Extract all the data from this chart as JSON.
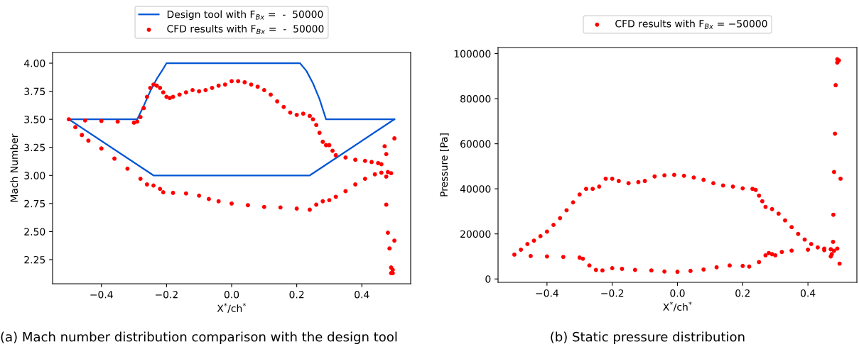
{
  "chart_data": [
    {
      "type": "scatter",
      "xlabel": "X$^{*}$/ch$^{*}$",
      "ylabel": "Mach Number",
      "legend": "top",
      "grid": false,
      "xlim": [
        -0.55,
        0.55
      ],
      "ylim": [
        2.035,
        4.095
      ],
      "xticks": [
        {
          "value": -0.4,
          "label": "−0.4"
        },
        {
          "value": -0.2,
          "label": "−0.2"
        },
        {
          "value": 0.0,
          "label": "0.0"
        },
        {
          "value": 0.2,
          "label": "0.2"
        },
        {
          "value": 0.4,
          "label": "0.4"
        }
      ],
      "yticks": [
        {
          "value": 2.25,
          "label": "2.25"
        },
        {
          "value": 2.5,
          "label": "2.50"
        },
        {
          "value": 2.75,
          "label": "2.75"
        },
        {
          "value": 3.0,
          "label": "3.00"
        },
        {
          "value": 3.25,
          "label": "3.25"
        },
        {
          "value": 3.5,
          "label": "3.50"
        },
        {
          "value": 3.75,
          "label": "3.75"
        },
        {
          "value": 4.0,
          "label": "4.00"
        }
      ],
      "annotations": [
        "(a) Mach number distribution comparison with the design tool"
      ],
      "series": [
        {
          "type": "line",
          "name": "Design tool with F$_{Bx}$ =  -  50000",
          "color": "#0055d4",
          "line_style": "solid",
          "marker": "none",
          "x": [
            -0.5,
            -0.29,
            -0.27,
            -0.25,
            -0.23,
            -0.21,
            -0.2,
            0.21,
            0.23,
            0.25,
            0.27,
            0.29,
            0.5
          ],
          "values": [
            3.5,
            3.5,
            3.62,
            3.75,
            3.86,
            3.95,
            4.0,
            4.0,
            3.93,
            3.82,
            3.68,
            3.5,
            3.5
          ]
        },
        {
          "type": "line",
          "color": "#0055d4",
          "line_style": "solid",
          "marker": "none",
          "x": [
            -0.5,
            -0.24,
            0.24,
            0.5
          ],
          "values": [
            3.5,
            3.0,
            3.0,
            3.5
          ]
        },
        {
          "name": "CFD results with F$_{Bx}$ =  -  50000",
          "color": "#ff0000",
          "marker": "circle",
          "x": [
            -0.5,
            -0.45,
            -0.4,
            -0.35,
            -0.3,
            -0.29,
            -0.28,
            -0.27,
            -0.26,
            -0.25,
            -0.24,
            -0.23,
            -0.22,
            -0.21,
            -0.2,
            -0.19,
            -0.18,
            -0.16,
            -0.14,
            -0.12,
            -0.1,
            -0.08,
            -0.06,
            -0.04,
            -0.02,
            0.0,
            0.02,
            0.04,
            0.06,
            0.08,
            0.1,
            0.12,
            0.14,
            0.16,
            0.18,
            0.2,
            0.22,
            0.24,
            0.25,
            0.26,
            0.27,
            0.28,
            0.29,
            0.3,
            0.31,
            0.32,
            0.35,
            0.38,
            0.41,
            0.43,
            0.45,
            0.46,
            -0.48,
            -0.46,
            -0.44,
            -0.4,
            -0.36,
            -0.32,
            -0.28,
            -0.26,
            -0.24,
            -0.22,
            -0.21,
            -0.18,
            -0.14,
            -0.1,
            -0.07,
            -0.04,
            0.0,
            0.05,
            0.1,
            0.15,
            0.2,
            0.24,
            0.26,
            0.28,
            0.3,
            0.32,
            0.35,
            0.38,
            0.41,
            0.44,
            0.46,
            0.48,
            0.49,
            0.47,
            0.475,
            0.5,
            0.475,
            0.475,
            0.48,
            0.5,
            0.485,
            0.49,
            0.495,
            0.49,
            0.495
          ],
          "values": [
            3.5,
            3.49,
            3.485,
            3.48,
            3.47,
            3.48,
            3.52,
            3.6,
            3.7,
            3.78,
            3.81,
            3.8,
            3.78,
            3.74,
            3.7,
            3.69,
            3.7,
            3.72,
            3.74,
            3.76,
            3.75,
            3.76,
            3.78,
            3.8,
            3.81,
            3.84,
            3.84,
            3.83,
            3.81,
            3.79,
            3.76,
            3.72,
            3.66,
            3.61,
            3.56,
            3.54,
            3.55,
            3.53,
            3.5,
            3.45,
            3.38,
            3.3,
            3.27,
            3.27,
            3.22,
            3.18,
            3.16,
            3.14,
            3.13,
            3.12,
            3.11,
            3.1,
            3.43,
            3.36,
            3.31,
            3.24,
            3.15,
            3.06,
            2.97,
            2.92,
            2.91,
            2.88,
            2.85,
            2.845,
            2.84,
            2.82,
            2.79,
            2.77,
            2.75,
            2.735,
            2.72,
            2.715,
            2.705,
            2.695,
            2.74,
            2.77,
            2.78,
            2.81,
            2.86,
            2.92,
            2.97,
            3.01,
            3.025,
            3.03,
            3.02,
            3.26,
            3.19,
            3.33,
            2.99,
            2.74,
            2.49,
            2.42,
            2.35,
            2.18,
            2.16,
            2.13,
            2.13
          ]
        }
      ]
    },
    {
      "type": "scatter",
      "xlabel": "X$^{*}$/ch$^{*}$",
      "ylabel": "Pressure [Pa]",
      "legend": "top",
      "grid": false,
      "xlim": [
        -0.55,
        0.55
      ],
      "ylim": [
        -1500,
        102700
      ],
      "xticks": [
        {
          "value": -0.4,
          "label": "−0.4"
        },
        {
          "value": -0.2,
          "label": "−0.2"
        },
        {
          "value": 0.0,
          "label": "0.0"
        },
        {
          "value": 0.2,
          "label": "0.2"
        },
        {
          "value": 0.4,
          "label": "0.4"
        }
      ],
      "yticks": [
        0,
        20000,
        40000,
        60000,
        80000,
        100000
      ],
      "annotations": [
        "(b) Static pressure distribution"
      ],
      "series": [
        {
          "name": "CFD results with F$_{Bx}$ = −50000",
          "color": "#ff0000",
          "marker": "circle",
          "x": [
            -0.5,
            -0.48,
            -0.46,
            -0.44,
            -0.42,
            -0.4,
            -0.38,
            -0.36,
            -0.34,
            -0.32,
            -0.3,
            -0.28,
            -0.26,
            -0.24,
            -0.22,
            -0.2,
            -0.18,
            -0.15,
            -0.12,
            -0.1,
            -0.07,
            -0.04,
            -0.01,
            0.02,
            0.05,
            0.08,
            0.11,
            0.14,
            0.17,
            0.2,
            0.23,
            0.24,
            0.25,
            0.26,
            0.27,
            0.29,
            0.31,
            0.33,
            0.35,
            0.37,
            0.39,
            0.41,
            0.43,
            0.45,
            0.47,
            0.49,
            -0.45,
            -0.4,
            -0.35,
            -0.3,
            -0.29,
            -0.27,
            -0.25,
            -0.23,
            -0.2,
            -0.17,
            -0.13,
            -0.08,
            -0.04,
            0.0,
            0.04,
            0.08,
            0.12,
            0.16,
            0.2,
            0.22,
            0.25,
            0.27,
            0.28,
            0.29,
            0.3,
            0.32,
            0.35,
            0.4,
            0.45,
            0.48,
            0.49,
            0.49,
            0.495,
            0.485,
            0.483,
            0.48,
            0.5,
            0.478,
            0.477,
            0.47,
            0.473,
            0.497
          ],
          "values": [
            10800,
            13000,
            15500,
            17000,
            19000,
            21000,
            24000,
            27000,
            30500,
            34000,
            37500,
            40000,
            40000,
            41000,
            44500,
            44500,
            43500,
            42500,
            43000,
            43500,
            45500,
            46000,
            46200,
            45800,
            45000,
            44000,
            42500,
            41500,
            41000,
            40200,
            40000,
            39500,
            37000,
            34500,
            32000,
            31000,
            29000,
            26000,
            23000,
            20000,
            17500,
            15500,
            14000,
            13500,
            13200,
            13500,
            10200,
            10000,
            9800,
            9500,
            9000,
            6000,
            4000,
            3800,
            4800,
            4500,
            4000,
            3800,
            3300,
            3200,
            3600,
            4200,
            5200,
            6000,
            5800,
            5500,
            7500,
            10500,
            11500,
            11000,
            10500,
            12000,
            12600,
            13000,
            12800,
            12500,
            97500,
            96000,
            97000,
            86000,
            64500,
            47500,
            44500,
            28500,
            16500,
            10000,
            11000,
            6800
          ]
        }
      ]
    }
  ]
}
